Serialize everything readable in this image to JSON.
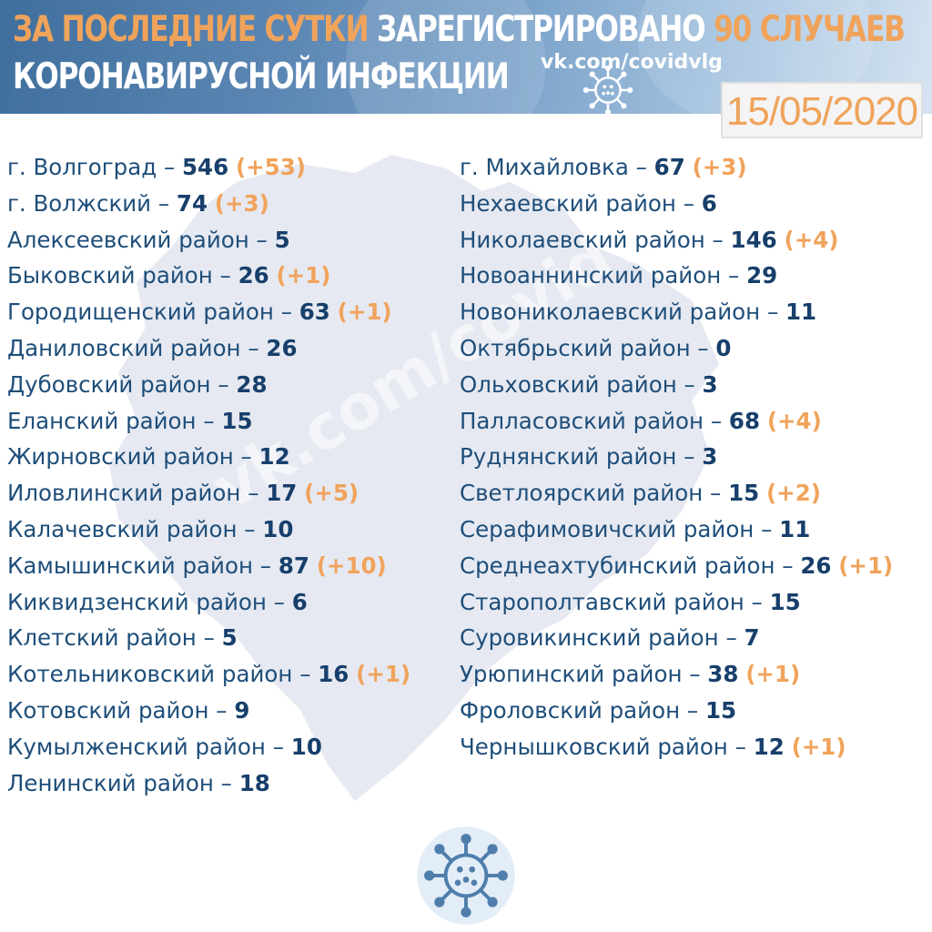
{
  "header": {
    "line1_part1": "ЗА ПОСЛЕДНИЕ СУТКИ",
    "line1_part2": "ЗАРЕГИСТРИРОВАНО",
    "line1_part3": "90 СЛУЧАЕВ",
    "line2": "КОРОНАВИРУСНОЙ ИНФЕКЦИИ",
    "vk_link": "vk.com/covidvlg",
    "date": "15/05/2020"
  },
  "watermark": "vk.com/covidvlg",
  "colors": {
    "accent_orange": "#f0a35b",
    "dark_blue": "#173f6b",
    "header_blue": "#4f7eac"
  },
  "icons": [
    "virus-icon"
  ],
  "left_column": [
    {
      "name": "г. Волгоград",
      "count": "546",
      "delta": "(+53)"
    },
    {
      "name": "г. Волжский",
      "count": "74",
      "delta": "(+3)"
    },
    {
      "name": "Алексеевский район",
      "count": "5",
      "delta": ""
    },
    {
      "name": "Быковский район",
      "count": "26",
      "delta": "(+1)"
    },
    {
      "name": "Городищенский район",
      "count": "63",
      "delta": "(+1)"
    },
    {
      "name": "Даниловский район",
      "count": "26",
      "delta": ""
    },
    {
      "name": "Дубовский район",
      "count": "28",
      "delta": ""
    },
    {
      "name": "Еланский район",
      "count": "15",
      "delta": ""
    },
    {
      "name": "Жирновский район",
      "count": "12",
      "delta": ""
    },
    {
      "name": "Иловлинский район",
      "count": "17",
      "delta": "(+5)"
    },
    {
      "name": "Калачевский район",
      "count": "10",
      "delta": ""
    },
    {
      "name": "Камышинский район",
      "count": "87",
      "delta": "(+10)"
    },
    {
      "name": "Киквидзенский район",
      "count": "6",
      "delta": ""
    },
    {
      "name": "Клетский район",
      "count": "5",
      "delta": ""
    },
    {
      "name": "Котельниковский район",
      "count": "16",
      "delta": "(+1)"
    },
    {
      "name": "Котовский район",
      "count": "9",
      "delta": ""
    },
    {
      "name": "Кумылженский район",
      "count": "10",
      "delta": ""
    },
    {
      "name": "Ленинский район",
      "count": "18",
      "delta": ""
    }
  ],
  "right_column": [
    {
      "name": "г. Михайловка",
      "count": "67",
      "delta": "(+3)"
    },
    {
      "name": "Нехаевский район",
      "count": "6",
      "delta": ""
    },
    {
      "name": "Николаевский район",
      "count": "146",
      "delta": "(+4)"
    },
    {
      "name": "Новоаннинский район",
      "count": "29",
      "delta": ""
    },
    {
      "name": "Новониколаевский район",
      "count": "11",
      "delta": ""
    },
    {
      "name": "Октябрьский район",
      "count": "0",
      "delta": ""
    },
    {
      "name": "Ольховский район",
      "count": "3",
      "delta": ""
    },
    {
      "name": "Палласовский район",
      "count": "68",
      "delta": "(+4)"
    },
    {
      "name": "Руднянский район",
      "count": "3",
      "delta": ""
    },
    {
      "name": "Светлоярский район",
      "count": "15",
      "delta": "(+2)"
    },
    {
      "name": "Серафимовичский район",
      "count": "11",
      "delta": ""
    },
    {
      "name": "Среднеахтубинский район",
      "count": "26",
      "delta": "(+1)"
    },
    {
      "name": " Старополтавский район",
      "count": "15",
      "delta": ""
    },
    {
      "name": "Суровикинский район",
      "count": "7",
      "delta": ""
    },
    {
      "name": "Урюпинский район",
      "count": "38",
      "delta": "(+1)"
    },
    {
      "name": "Фроловский район",
      "count": "15",
      "delta": ""
    },
    {
      "name": "Чернышковский район",
      "count": "12",
      "delta": "(+1)"
    }
  ]
}
